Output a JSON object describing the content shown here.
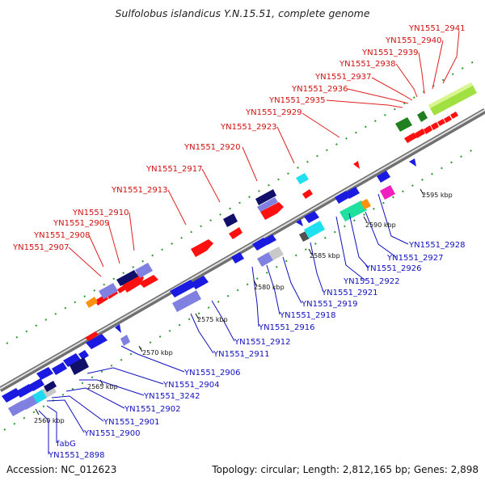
{
  "title": "Sulfolobus islandicus Y.N.15.51, complete genome",
  "footer": {
    "accession": "Accession: NC_012623",
    "topology": "Topology: circular; Length: 2,812,165 bp; Genes: 2,898"
  },
  "scale_ticks": [
    "2560 kbp",
    "2565 kbp",
    "2570 kbp",
    "2575 kbp",
    "2580 kbp",
    "2585 kbp",
    "2590 kbp",
    "2595 kbp"
  ],
  "labels_top": [
    "YN1551_2941",
    "YN1551_2940",
    "YN1551_2939",
    "YN1551_2938",
    "YN1551_2937",
    "YN1551_2936",
    "YN1551_2935",
    "YN1551_2929",
    "YN1551_2923",
    "YN1551_2920",
    "YN1551_2917",
    "YN1551_2913",
    "YN1551_2910",
    "YN1551_2909",
    "YN1551_2908",
    "YN1551_2907"
  ],
  "labels_bottom": [
    "YN1551_2928",
    "YN1551_2927",
    "YN1551_2926",
    "YN1551_2922",
    "YN1551_2921",
    "YN1551_2919",
    "YN1551_2918",
    "YN1551_2916",
    "YN1551_2912",
    "YN1551_2911",
    "YN1551_2906",
    "YN1551_2904",
    "YN1551_3242",
    "YN1551_2902",
    "YN1551_2901",
    "YN1551_2900",
    "fabG",
    "YN1551_2898"
  ],
  "colors": {
    "forward_gene": "#ff1010",
    "reverse_gene": "#1a1ae0",
    "rna": "#20a020",
    "backbone": "#9a9a9a"
  }
}
